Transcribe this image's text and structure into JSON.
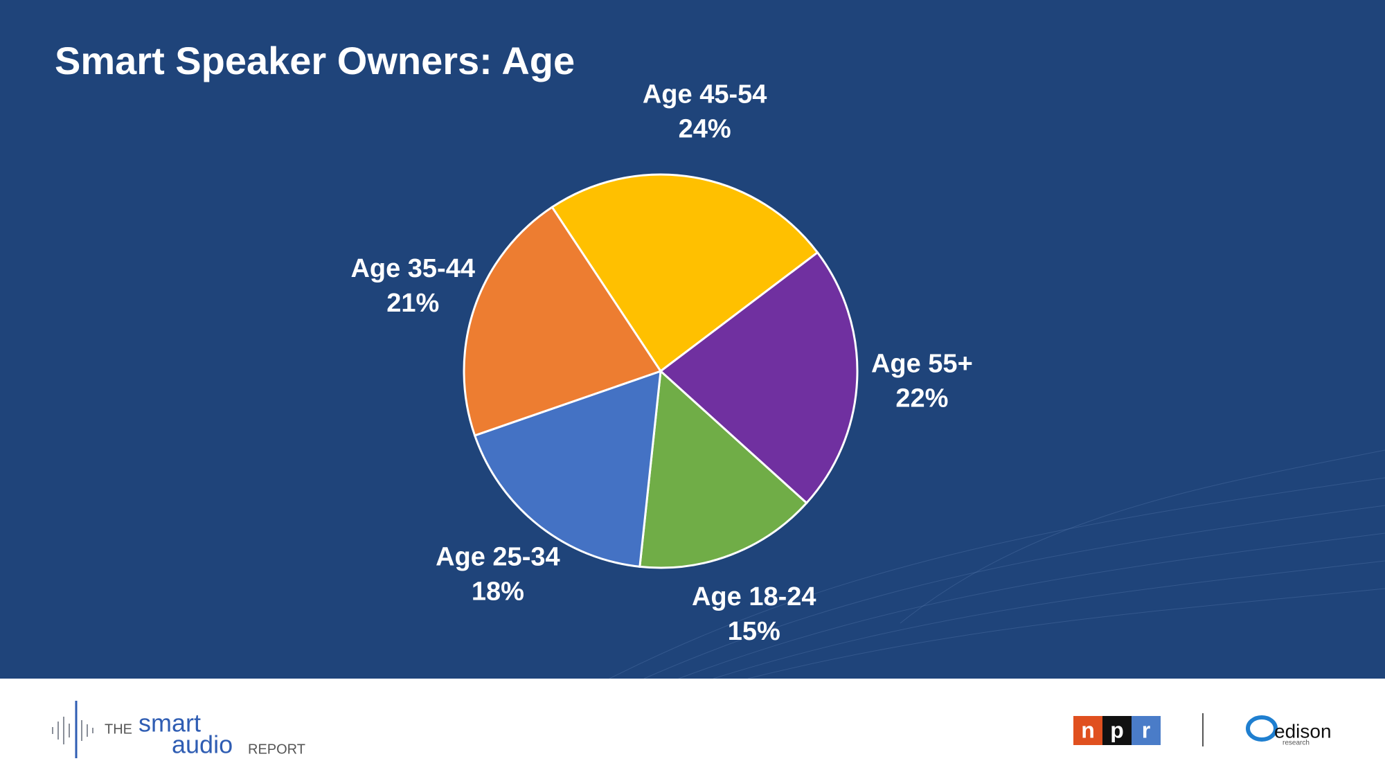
{
  "chart_data": {
    "type": "pie",
    "title": "Smart Speaker Owners: Age",
    "categories": [
      "Age 45-54",
      "Age 55+",
      "Age 18-24",
      "Age 25-34",
      "Age 35-44"
    ],
    "values": [
      24,
      22,
      15,
      18,
      21
    ],
    "value_labels": [
      "24%",
      "22%",
      "15%",
      "18%",
      "21%"
    ],
    "colors": [
      "#ffc000",
      "#7030a0",
      "#70ad47",
      "#4472c4",
      "#ed7d31"
    ]
  },
  "footer": {
    "report_the": "THE",
    "report_smart": "smart",
    "report_audio": "audio",
    "report_report": "REPORT",
    "npr": [
      "n",
      "p",
      "r"
    ],
    "edison": "edison",
    "edison_sub": "research"
  }
}
